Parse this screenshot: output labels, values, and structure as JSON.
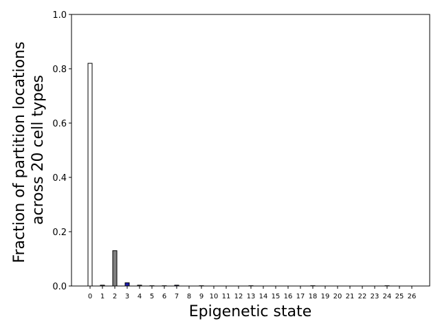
{
  "chart_data": {
    "type": "bar",
    "categories": [
      "0",
      "1",
      "2",
      "3",
      "4",
      "5",
      "6",
      "7",
      "8",
      "9",
      "10",
      "11",
      "12",
      "13",
      "14",
      "15",
      "16",
      "17",
      "18",
      "19",
      "20",
      "21",
      "22",
      "23",
      "24",
      "25",
      "26"
    ],
    "values": [
      0.82,
      0.003,
      0.13,
      0.012,
      0.003,
      0.001,
      0.001,
      0.003,
      0.0,
      0.001,
      0.0,
      0.0,
      0.0,
      0.001,
      0.0,
      0.0,
      0.0,
      0.0,
      0.001,
      0.0,
      0.0,
      0.0,
      0.0,
      0.0,
      0.001,
      0.0,
      0.0
    ],
    "bar_colors": [
      "#ffffff",
      "#808080",
      "#808080",
      "#1f1fb0",
      "#808080",
      "#808080",
      "#808080",
      "#1f1fb0",
      "#808080",
      "#808080",
      "#808080",
      "#808080",
      "#808080",
      "#1f1fb0",
      "#808080",
      "#808080",
      "#808080",
      "#808080",
      "#808080",
      "#808080",
      "#808080",
      "#808080",
      "#808080",
      "#808080",
      "#808080",
      "#808080",
      "#808080"
    ],
    "xlabel": "Epigenetic state",
    "ylabel_lines": [
      "Fraction of partition locations",
      "across 20 cell types"
    ],
    "ylim": [
      0,
      1.0
    ],
    "yticks": [
      "0.0",
      "0.2",
      "0.4",
      "0.6",
      "0.8",
      "1.0"
    ],
    "grid": false,
    "legend": "none"
  }
}
